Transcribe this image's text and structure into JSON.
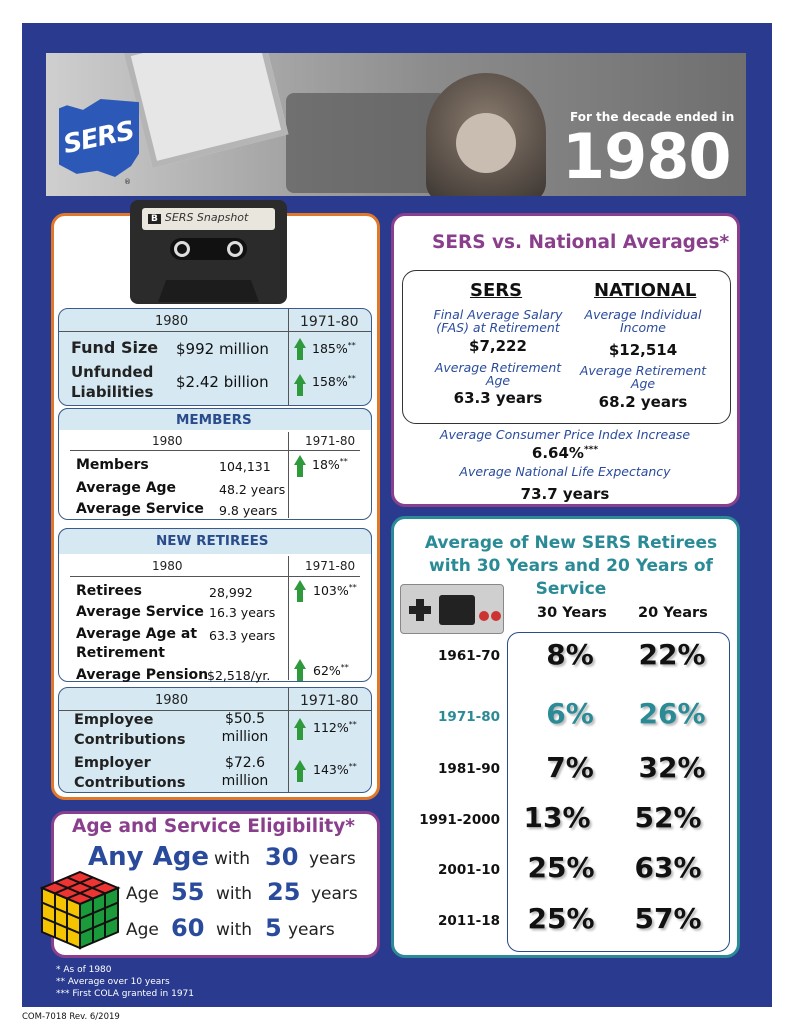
{
  "header": {
    "logo_text": "SERS",
    "registered": "®",
    "decade_label": "For the decade ended in",
    "decade_year": "1980"
  },
  "cassette": {
    "side": "B",
    "label": "SERS Snapshot"
  },
  "fund": {
    "col1": "1980",
    "col2": "1971-80",
    "rows": [
      {
        "label": "Fund Size",
        "value": "$992 million",
        "pct": "185%",
        "mark": "**"
      },
      {
        "label": "Unfunded Liabilities",
        "value": "$2.42 billion",
        "pct": "158%",
        "mark": "**"
      }
    ]
  },
  "members": {
    "title": "MEMBERS",
    "col1": "1980",
    "col2": "1971-80",
    "rows": [
      {
        "label": "Members",
        "value": "104,131"
      },
      {
        "label": "Average Age",
        "value": "48.2 years"
      },
      {
        "label": "Average Service",
        "value": "9.8 years"
      }
    ],
    "pct": "18%",
    "mark": "**"
  },
  "retirees": {
    "title": "NEW RETIREES",
    "col1": "1980",
    "col2": "1971-80",
    "rows": [
      {
        "label": "Retirees",
        "value": "28,992"
      },
      {
        "label": "Average Service",
        "value": "16.3 years"
      },
      {
        "label": "Average Age at Retirement",
        "value": "63.3 years"
      },
      {
        "label": "Average Pension",
        "value": "$2,518/yr."
      }
    ],
    "pct1": "103%",
    "pct2": "62%",
    "mark": "**"
  },
  "contrib": {
    "col1": "1980",
    "col2": "1971-80",
    "rows": [
      {
        "label": "Employee Contributions",
        "value": "$50.5 million",
        "pct": "112%",
        "mark": "**"
      },
      {
        "label": "Employer Contributions",
        "value": "$72.6 million",
        "pct": "143%",
        "mark": "**"
      }
    ]
  },
  "eligibility": {
    "title": "Age and Service Eligibility*",
    "rows": [
      {
        "age_prefix": "",
        "age": "Any Age",
        "with": "with",
        "years": "30",
        "unit": "years"
      },
      {
        "age_prefix": "Age",
        "age": "55",
        "with": "with",
        "years": "25",
        "unit": "years"
      },
      {
        "age_prefix": "Age",
        "age": "60",
        "with": "with",
        "years": "5",
        "unit": "years"
      }
    ]
  },
  "national": {
    "title": "SERS vs. National Averages*",
    "sers_head": "SERS",
    "nat_head": "NATIONAL",
    "fas_label": "Final Average Salary (FAS) at Retirement",
    "fas_value": "$7,222",
    "income_label": "Average Individual Income",
    "income_value": "$12,514",
    "sers_age_label": "Average Retirement Age",
    "sers_age_value": "63.3 years",
    "nat_age_label": "Average Retirement Age",
    "nat_age_value": "68.2 years",
    "cpi_label": "Average Consumer Price Index Increase",
    "cpi_value": "6.64%",
    "cpi_mark": "***",
    "life_label": "Average National Life Expectancy",
    "life_value": "73.7 years"
  },
  "service": {
    "title": "Average of New SERS Retirees with 30 Years and 20 Years of Service",
    "col30": "30 Years",
    "col20": "20 Years",
    "rows": [
      {
        "period": "1961-70",
        "y30": "8%",
        "y20": "22%"
      },
      {
        "period": "1971-80",
        "y30": "6%",
        "y20": "26%"
      },
      {
        "period": "1981-90",
        "y30": "7%",
        "y20": "32%"
      },
      {
        "period": "1991-2000",
        "y30": "13%",
        "y20": "52%"
      },
      {
        "period": "2001-10",
        "y30": "25%",
        "y20": "63%"
      },
      {
        "period": "2011-18",
        "y30": "25%",
        "y20": "57%"
      }
    ],
    "highlight_color": "#2a8a96"
  },
  "footnotes": {
    "f1": "* As of 1980",
    "f2": "** Average over 10 years",
    "f3": "*** First COLA granted in 1971"
  },
  "doc_code": "COM-7018 Rev. 6/2019"
}
